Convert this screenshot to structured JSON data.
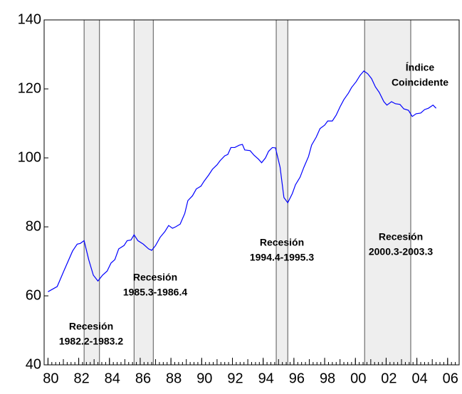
{
  "chart_data": {
    "type": "line",
    "x": [
      1980.0,
      1980.6,
      1981.05,
      1981.6,
      1981.9,
      1982.1,
      1982.35,
      1982.65,
      1982.95,
      1983.25,
      1983.55,
      1983.85,
      1984.1,
      1984.35,
      1984.6,
      1984.95,
      1985.15,
      1985.4,
      1985.6,
      1985.85,
      1986.2,
      1986.55,
      1986.75,
      1987.0,
      1987.3,
      1987.6,
      1987.85,
      1988.1,
      1988.3,
      1988.6,
      1988.9,
      1989.1,
      1989.4,
      1989.65,
      1989.95,
      1990.15,
      1990.45,
      1990.7,
      1991.0,
      1991.2,
      1991.5,
      1991.7,
      1991.9,
      1992.15,
      1992.45,
      1992.65,
      1992.8,
      1993.15,
      1993.4,
      1993.7,
      1993.9,
      1994.15,
      1994.35,
      1994.6,
      1994.8,
      1995.1,
      1995.35,
      1995.6,
      1995.9,
      1996.1,
      1996.4,
      1996.65,
      1996.95,
      1997.15,
      1997.45,
      1997.7,
      1998.0,
      1998.2,
      1998.5,
      1998.75,
      1999.0,
      1999.25,
      1999.55,
      1999.75,
      2000.05,
      2000.3,
      2000.55,
      2000.8,
      2001.05,
      2001.3,
      2001.55,
      2001.85,
      2002.05,
      2002.35,
      2002.6,
      2002.9,
      2003.15,
      2003.45,
      2003.7,
      2003.95,
      2004.25,
      2004.5,
      2004.75,
      2005.05,
      2005.25
    ],
    "series": [
      {
        "color": "#0000ff",
        "values": [
          61.2,
          62.7,
          67.4,
          73,
          75,
          75.2,
          76,
          70.5,
          66,
          64.3,
          66,
          67.2,
          69.5,
          70.5,
          73.6,
          74.6,
          76,
          76.2,
          77.7,
          76,
          75,
          73.6,
          73.2,
          74.6,
          77,
          78.6,
          80.4,
          79.6,
          80,
          80.8,
          83.9,
          87.6,
          89,
          91,
          91.8,
          93.2,
          95,
          96.7,
          98,
          99.2,
          100.6,
          101,
          103,
          103,
          103.7,
          103.9,
          102.3,
          102.1,
          100.8,
          99.6,
          98.6,
          100,
          101.9,
          103,
          102.9,
          97.3,
          88.5,
          87,
          89.7,
          92.2,
          94.4,
          97.3,
          100.4,
          103.7,
          106,
          108.5,
          109.5,
          110.7,
          110.7,
          112.4,
          114.8,
          116.9,
          118.8,
          120.4,
          122.1,
          123.9,
          125.2,
          124.4,
          123,
          120.6,
          119,
          116.3,
          115.3,
          116.3,
          115.7,
          115.5,
          114.2,
          113.8,
          112,
          112.8,
          113,
          114,
          114.4,
          115.3,
          114.4
        ]
      }
    ],
    "shaded": [
      {
        "start": 1982.35,
        "end": 1983.35,
        "label": [
          "Recesión",
          "1982.2-1983.2"
        ]
      },
      {
        "start": 1985.6,
        "end": 1986.85,
        "label": [
          "Recesión",
          "1985.3-1986.4"
        ]
      },
      {
        "start": 1994.85,
        "end": 1995.6,
        "label": [
          "Recesión",
          "1994.4-1995.3"
        ]
      },
      {
        "start": 2000.6,
        "end": 2003.6,
        "label": [
          "Recesión",
          "2000.3-2003.3"
        ]
      }
    ],
    "annotations": [
      [
        "Índice",
        "Coincidente"
      ]
    ],
    "xlim": [
      1979.75,
      2006.75
    ],
    "xticks": [
      {
        "value": 1980,
        "label": "80"
      },
      {
        "value": 1982,
        "label": "82"
      },
      {
        "value": 1984,
        "label": "84"
      },
      {
        "value": 1986,
        "label": "86"
      },
      {
        "value": 1988,
        "label": "88"
      },
      {
        "value": 1990,
        "label": "90"
      },
      {
        "value": 1992,
        "label": "92"
      },
      {
        "value": 1994,
        "label": "94"
      },
      {
        "value": 1996,
        "label": "96"
      },
      {
        "value": 1998,
        "label": "98"
      },
      {
        "value": 2000,
        "label": "00"
      },
      {
        "value": 2002,
        "label": "02"
      },
      {
        "value": 2004,
        "label": "04"
      },
      {
        "value": 2006,
        "label": "06"
      }
    ],
    "ylim": [
      40,
      140
    ],
    "yticks": [
      40,
      60,
      80,
      100,
      120,
      140
    ]
  }
}
